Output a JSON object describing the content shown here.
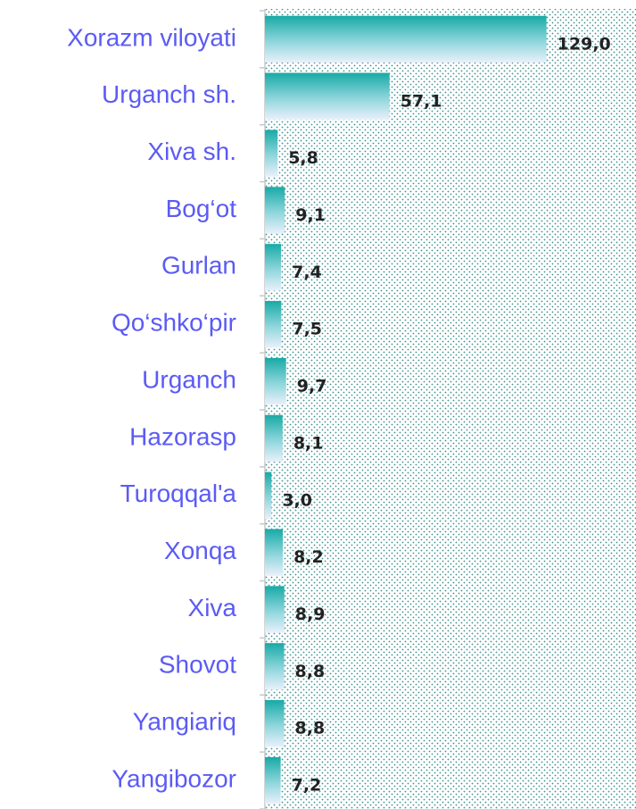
{
  "chart_data": {
    "type": "barh",
    "categories": [
      "Xorazm viloyati",
      "Urganch sh.",
      "Xiva sh.",
      "Bog‘ot",
      "Gurlan",
      "Qo‘shko‘pir",
      "Urganch",
      "Hazorasp",
      "Turoqqal'a",
      "Xonqa",
      "Xiva",
      "Shovot",
      "Yangiariq",
      "Yangibozor"
    ],
    "values": [
      129.0,
      57.1,
      5.8,
      9.1,
      7.4,
      7.5,
      9.7,
      8.1,
      3.0,
      8.2,
      8.9,
      8.8,
      8.8,
      7.2
    ],
    "value_labels": [
      "129,0",
      "57,1",
      "5,8",
      "9,1",
      "7,4",
      "7,5",
      "9,7",
      "8,1",
      "3,0",
      "8,2",
      "8,9",
      "8,8",
      "8,8",
      "7,2"
    ],
    "color": "#1aaea9",
    "xlim": [
      0,
      170
    ]
  }
}
